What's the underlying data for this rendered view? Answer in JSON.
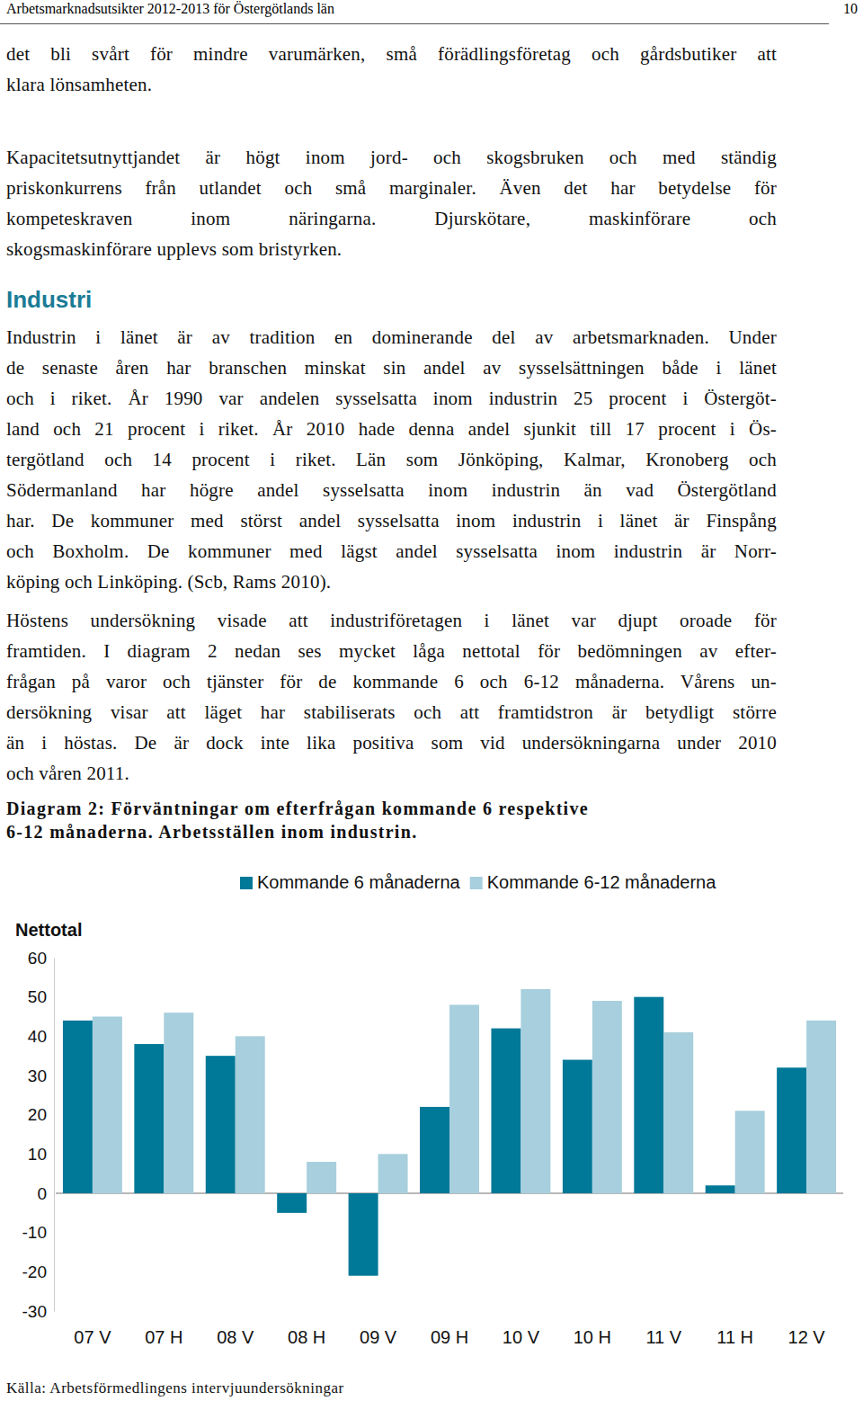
{
  "header": {
    "title": "Arbetsmarknadsutsikter 2012-2013 för Östergötlands län",
    "page": "10"
  },
  "body": [
    {
      "type": "paragraph",
      "lines": [
        "det bli svårt för mindre varumärken, små förädlingsföretag och gårdsbutiker att",
        "klara lönsamheten."
      ]
    },
    {
      "type": "paragraph",
      "lines": [
        "Kapacitetsutnyttjandet är högt inom jord- och skogsbruken och med ständig",
        "priskonkurrens från utlandet och små marginaler. Även det har betydelse för",
        "kompeteskraven inom näringarna. Djurskötare, maskinförare och",
        "skogsmaskinförare upplevs som bristyrken."
      ]
    },
    {
      "type": "heading",
      "text": "Industri"
    },
    {
      "type": "paragraph",
      "lines": [
        "Industrin i länet är av tradition en dominerande del av arbetsmarknaden. Under",
        "de senaste åren har branschen minskat sin andel av sysselsättningen både i länet",
        "och i riket. År 1990 var andelen sysselsatta inom industrin 25 procent i Östergöt-",
        "land och 21 procent i riket. År 2010 hade denna andel sjunkit till 17 procent i Ös-",
        "tergötland och 14 procent i riket. Län som Jönköping, Kalmar, Kronoberg och",
        "Södermanland har högre andel sysselsatta inom industrin än vad Östergötland",
        "har. De kommuner med störst andel sysselsatta inom industrin i länet är Finspång",
        "och Boxholm. De kommuner med lägst andel sysselsatta inom industrin är Norr-",
        "köping och Linköping. (Scb, Rams 2010)."
      ]
    },
    {
      "type": "paragraph",
      "lines": [
        "Höstens undersökning visade att industriföretagen i länet var djupt oroade för",
        "framtiden. I diagram 2 nedan ses mycket låga nettotal för bedömningen av efter-",
        "frågan på varor och tjänster för de kommande 6 och 6-12 månaderna. Vårens un-",
        "dersökning visar att läget har stabiliserats och att framtidstron är betydligt större",
        "än i höstas. De är dock inte lika positiva som vid undersökningarna under 2010",
        "och våren 2011."
      ]
    }
  ],
  "chart_data": {
    "type": "bar",
    "title": [
      "Diagram 2: Förväntningar om efterfrågan kommande 6 respektive",
      "6-12 månaderna. Arbetsställen inom industrin."
    ],
    "y_label": "Nettotal",
    "categories": [
      "07 V",
      "07 H",
      "08 V",
      "08 H",
      "09 V",
      "09 H",
      "10 V",
      "10 H",
      "11 V",
      "11 H",
      "12 V"
    ],
    "series": [
      {
        "name": "Kommande 6 månaderna",
        "color": "#007898",
        "values": [
          44,
          38,
          35,
          -5,
          -21,
          22,
          42,
          34,
          50,
          2,
          32
        ]
      },
      {
        "name": "Kommande 6-12 månaderna",
        "color": "#a7cfdd",
        "values": [
          45,
          46,
          40,
          8,
          10,
          48,
          52,
          49,
          41,
          21,
          44
        ]
      }
    ],
    "ylim": [
      -30,
      60
    ],
    "yticks": [
      -30,
      -20,
      -10,
      0,
      10,
      20,
      30,
      40,
      50,
      60
    ],
    "grid": false,
    "legend": "top",
    "source": "Källa: Arbetsförmedlingens intervjuundersökningar"
  }
}
